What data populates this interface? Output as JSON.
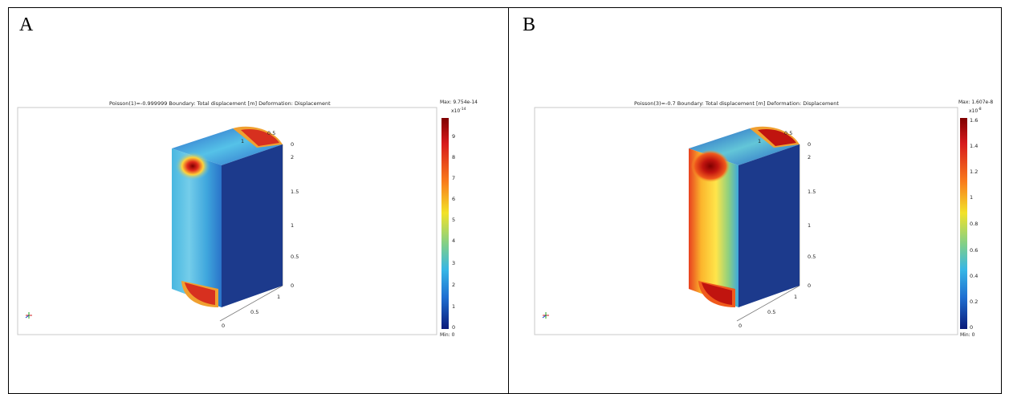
{
  "panels": [
    {
      "label": "A",
      "title": "Poisson(1)=-0.999999   Boundary: Total displacement [m]   Deformation: Displacement",
      "max_label": "Max: 9.754e-14",
      "min_label": "Min: 0",
      "exponent": "x10",
      "exponent_power": "-14",
      "colorbar_ticks": [
        "9",
        "8",
        "7",
        "6",
        "5",
        "4",
        "3",
        "2",
        "1",
        "0"
      ],
      "axis_ticks": [
        "1",
        "0.5",
        "0",
        "2",
        "1.5",
        "1",
        "0.5",
        "0",
        "1",
        "0.5",
        "0"
      ]
    },
    {
      "label": "B",
      "title": "Poisson(3)=-0.7   Boundary: Total displacement [m]   Deformation: Displacement",
      "max_label": "Max: 1.607e-8",
      "min_label": "Min: 0",
      "exponent": "x10",
      "exponent_power": "-8",
      "colorbar_ticks": [
        "1.6",
        "1.4",
        "1.2",
        "1",
        "0.8",
        "0.6",
        "0.4",
        "0.2",
        "0"
      ],
      "axis_ticks": [
        "1",
        "0.5",
        "0",
        "2",
        "1.5",
        "1",
        "0.5",
        "0",
        "1",
        "0.5",
        "0"
      ]
    }
  ],
  "colors": {
    "jet_top": "#8b0000",
    "jet_bottom": "#00008b",
    "face_dark": "#1c3a8c"
  }
}
